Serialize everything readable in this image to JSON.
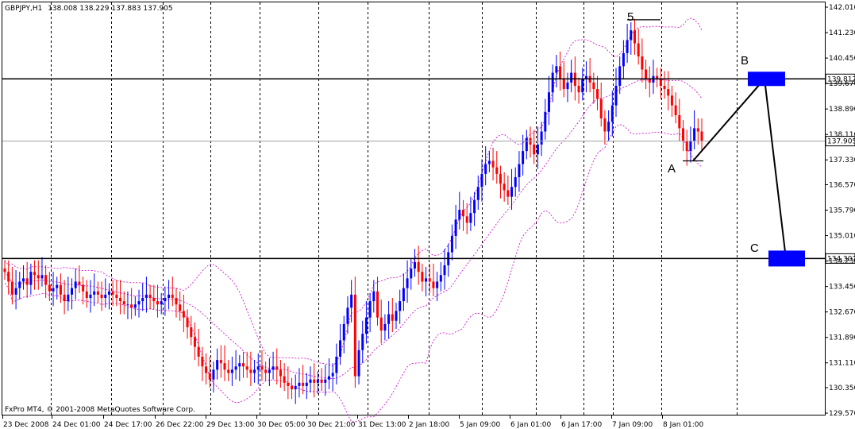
{
  "header": {
    "symbol": "GBPJPY,H1",
    "ohlc": "138.008 138.229 137.883 137.905"
  },
  "footer": {
    "copyright": "FxPro MT4, © 2001-2008 MetaQuotes Software Corp."
  },
  "price_scale": {
    "ticks": [
      "142.010",
      "141.230",
      "140.450",
      "139.670",
      "138.890",
      "138.110",
      "137.330",
      "136.570",
      "135.790",
      "135.010",
      "134.230",
      "133.450",
      "132.670",
      "131.890",
      "131.110",
      "130.350",
      "129.570"
    ]
  },
  "time_axis": {
    "ticks": [
      "23 Dec 2008",
      "24 Dec 01:00",
      "24 Dec 17:00",
      "26 Dec 22:00",
      "29 Dec 13:00",
      "30 Dec 05:00",
      "30 Dec 21:00",
      "31 Dec 13:00",
      "2 Jan 18:00",
      "5 Jan 09:00",
      "6 Jan 01:00",
      "6 Jan 17:00",
      "7 Jan 09:00",
      "8 Jan 01:00"
    ]
  },
  "price_tags": {
    "upper_level": "139.812",
    "current": "137.905",
    "lower_level": "134.307"
  },
  "annotations": {
    "wave5": "5",
    "pointA": "A",
    "pointB": "B",
    "pointC": "C"
  },
  "colors": {
    "bull": "#0000ff",
    "bear": "#ff0000",
    "bands": "#cc00cc",
    "level_line": "#000000",
    "current_line": "#a0a0a0",
    "target_box": "#0000ff"
  },
  "chart_data": {
    "type": "candlestick",
    "title": "GBPJPY,H1",
    "ylim": [
      129.57,
      142.01
    ],
    "indicator": "Bollinger Bands (dashed)",
    "horizontal_levels": [
      139.812,
      137.905,
      134.307
    ],
    "wave_path": [
      {
        "label": "A",
        "price": 137.3
      },
      {
        "label": "B",
        "price": 139.812
      },
      {
        "label": "C",
        "price": 134.307
      }
    ],
    "wave5_high": 141.6,
    "close_series": [
      133.9,
      133.6,
      133.2,
      133.4,
      133.6,
      133.7,
      133.5,
      133.9,
      133.8,
      133.7,
      133.8,
      133.5,
      133.3,
      133.4,
      133.5,
      133.2,
      133.0,
      133.2,
      133.4,
      133.6,
      133.5,
      133.3,
      133.1,
      133.2,
      133.3,
      133.2,
      133.1,
      133.2,
      133.3,
      133.2,
      133.1,
      133.0,
      132.9,
      132.9,
      132.8,
      132.9,
      133.0,
      133.1,
      133.2,
      133.1,
      133.0,
      132.9,
      133.0,
      133.1,
      133.2,
      133.1,
      132.9,
      132.7,
      132.5,
      132.2,
      131.9,
      131.6,
      131.3,
      131.0,
      130.8,
      130.6,
      130.9,
      131.2,
      131.1,
      130.9,
      130.8,
      130.9,
      131.0,
      131.1,
      131.0,
      130.9,
      130.8,
      130.9,
      131.0,
      130.9,
      130.8,
      130.9,
      131.0,
      130.9,
      130.7,
      130.5,
      130.4,
      130.3,
      130.4,
      130.5,
      130.4,
      130.5,
      130.6,
      130.5,
      130.6,
      130.5,
      130.6,
      130.7,
      130.8,
      131.3,
      131.8,
      132.3,
      132.8,
      133.2,
      130.7,
      131.5,
      132.0,
      132.5,
      133.0,
      133.3,
      132.5,
      132.1,
      132.3,
      132.6,
      132.4,
      132.7,
      133.0,
      133.4,
      133.7,
      134.0,
      134.2,
      133.9,
      133.6,
      133.7,
      133.6,
      133.4,
      133.6,
      133.8,
      134.1,
      134.5,
      135.0,
      135.5,
      135.8,
      135.6,
      135.4,
      135.7,
      136.1,
      136.5,
      136.9,
      137.2,
      137.3,
      137.1,
      136.9,
      136.6,
      136.4,
      136.2,
      136.5,
      136.8,
      137.2,
      137.6,
      138.0,
      137.8,
      137.5,
      137.8,
      138.2,
      138.8,
      139.4,
      140.0,
      140.2,
      139.8,
      139.5,
      139.7,
      140.0,
      139.6,
      139.4,
      139.8,
      139.9,
      139.7,
      139.5,
      139.2,
      138.6,
      138.2,
      138.5,
      139.0,
      139.6,
      140.2,
      140.6,
      141.0,
      141.3,
      140.9,
      140.5,
      140.1,
      139.8,
      139.7,
      139.9,
      139.8,
      139.6,
      139.5,
      139.3,
      139.0,
      138.7,
      138.3,
      137.9,
      137.6,
      137.9,
      138.3,
      138.2,
      137.905
    ]
  }
}
